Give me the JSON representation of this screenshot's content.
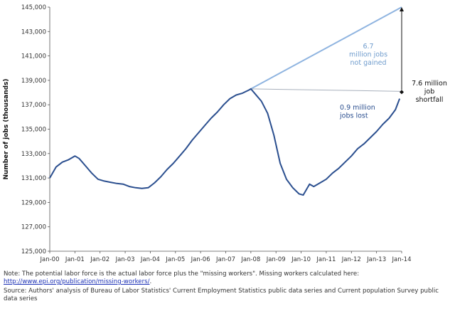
{
  "notes": {
    "note_prefix": "Note: The potential labor force is the actual labor force plus the \"missing workers\". Missing workers calculated here: ",
    "note_link": "http://www.epi.org/publication/missing-workers/",
    "note_suffix": ".",
    "source": "Source: Authors' analysis of Bureau of Labor Statistics' Current Employment Statistics public data series and Current population Survey public data series"
  },
  "chart_data": {
    "type": "line",
    "title": "",
    "xlabel": "",
    "ylabel": "Number of jobs (thousands)",
    "ylim": [
      125000,
      145000
    ],
    "yticks": [
      125000,
      127000,
      129000,
      131000,
      133000,
      135000,
      137000,
      139000,
      141000,
      143000,
      145000
    ],
    "ytick_labels": [
      "125,000",
      "127,000",
      "129,000",
      "131,000",
      "133,000",
      "135,000",
      "137,000",
      "139,000",
      "141,000",
      "143,000",
      "145,000"
    ],
    "xlim": [
      "2000-01",
      "2014-01"
    ],
    "xtick_labels": [
      "Jan-00",
      "Jan-01",
      "Jan-02",
      "Jan-03",
      "Jan-04",
      "Jan-05",
      "Jan-06",
      "Jan-07",
      "Jan-08",
      "Jan-09",
      "Jan-10",
      "Jan-11",
      "Jan-12",
      "Jan-13",
      "Jan-14"
    ],
    "grid": false,
    "series": [
      {
        "color": "#2b4f8f",
        "x": [
          "2000-01",
          "2000-04",
          "2000-07",
          "2000-10",
          "2001-01",
          "2001-03",
          "2001-06",
          "2001-09",
          "2001-12",
          "2002-03",
          "2002-06",
          "2002-09",
          "2002-12",
          "2003-03",
          "2003-06",
          "2003-09",
          "2003-12",
          "2004-03",
          "2004-06",
          "2004-09",
          "2004-12",
          "2005-03",
          "2005-06",
          "2005-09",
          "2005-12",
          "2006-03",
          "2006-06",
          "2006-09",
          "2006-12",
          "2007-03",
          "2007-06",
          "2007-09",
          "2007-12",
          "2008-01",
          "2008-03",
          "2008-06",
          "2008-09",
          "2008-12",
          "2009-03",
          "2009-06",
          "2009-09",
          "2009-12",
          "2010-02",
          "2010-05",
          "2010-07",
          "2010-10",
          "2011-01",
          "2011-04",
          "2011-07",
          "2011-10",
          "2012-01",
          "2012-04",
          "2012-07",
          "2012-10",
          "2013-01",
          "2013-04",
          "2013-07",
          "2013-10",
          "2013-12"
        ],
        "y": [
          131000,
          131900,
          132300,
          132500,
          132800,
          132600,
          132000,
          131400,
          130900,
          130750,
          130650,
          130550,
          130500,
          130300,
          130200,
          130150,
          130200,
          130600,
          131100,
          131700,
          132200,
          132800,
          133400,
          134100,
          134700,
          135300,
          135900,
          136400,
          137000,
          137500,
          137800,
          137950,
          138200,
          138300,
          137900,
          137300,
          136300,
          134500,
          132200,
          130900,
          130200,
          129700,
          129600,
          130500,
          130300,
          130600,
          130900,
          131400,
          131800,
          132300,
          132800,
          133400,
          133800,
          134300,
          134800,
          135400,
          135900,
          136600,
          137500
        ]
      }
    ],
    "reference_lines": [
      {
        "color": "#8fb4e0",
        "x": [
          "2008-01",
          "2014-01"
        ],
        "y": [
          138300,
          145000
        ]
      },
      {
        "color": "#a8b0bc",
        "x": [
          "2008-01",
          "2014-01"
        ],
        "y": [
          138300,
          138100
        ]
      }
    ],
    "annotations": [
      {
        "lines": [
          "6.7",
          "million jobs",
          "not gained"
        ],
        "color": "#6f9ccd"
      },
      {
        "lines": [
          "0.9 million",
          "jobs lost"
        ],
        "color": "#2b4f8f"
      },
      {
        "lines": [
          "7.6 million",
          "job",
          "shortfall"
        ],
        "color": "#111111"
      }
    ]
  }
}
